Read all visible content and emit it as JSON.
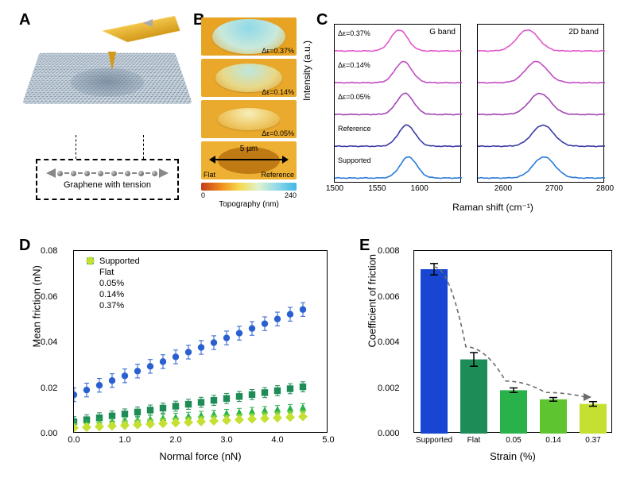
{
  "labels": {
    "A": "A",
    "B": "B",
    "C": "C",
    "D": "D",
    "E": "E"
  },
  "panelA": {
    "caption": "Graphene with tension"
  },
  "panelB": {
    "images": [
      {
        "strain": "Δε=0.37%",
        "bg": "#e8a323",
        "bubble_w": 92,
        "bubble_h": 44,
        "bubble_gradient": [
          "#8fd9e8",
          "#c9e9dc",
          "#e2b243"
        ]
      },
      {
        "strain": "Δε=0.14%",
        "bg": "#e9a82a",
        "bubble_w": 84,
        "bubble_h": 36,
        "bubble_gradient": [
          "#bde7e0",
          "#e8d98a",
          "#e2a734"
        ]
      },
      {
        "strain": "Δε=0.05%",
        "bg": "#eaaa2e",
        "bubble_w": 78,
        "bubble_h": 28,
        "bubble_gradient": [
          "#f6efb9",
          "#efc967",
          "#e3a833"
        ]
      },
      {
        "label_left": "Flat",
        "label_right": "Reference",
        "bg": "#edb032",
        "hole": true,
        "hole_color": "#c07a14",
        "scale_label": "5 µm"
      }
    ],
    "colorbar": {
      "gradient": [
        "#c33b1c",
        "#ef8a1b",
        "#f6d94c",
        "#dff2d0",
        "#8fd9e8",
        "#3fb7e4"
      ],
      "min": "0",
      "max": "240",
      "title": "Topography (nm)"
    }
  },
  "panelC": {
    "ylab": "Intensity (a.u.)",
    "xlab": "Raman shift (cm⁻¹)",
    "G": {
      "title": "G band",
      "xlim": [
        1500,
        1650
      ],
      "ticks": [
        1500,
        1550,
        1600
      ],
      "peak_domain": [
        1500,
        1650
      ]
    },
    "D2": {
      "title": "2D band",
      "xlim": [
        2550,
        2800
      ],
      "ticks": [
        2600,
        2700,
        2800
      ],
      "peak_domain": [
        2550,
        2800
      ]
    },
    "traces": [
      {
        "label": "Δε=0.37%",
        "color": "#e356c9",
        "G_peak": 1576,
        "D2_peak": 2648
      },
      {
        "label": "Δε=0.14%",
        "color": "#c24cc4",
        "G_peak": 1581,
        "D2_peak": 2665
      },
      {
        "label": "Δε=0.05%",
        "color": "#a347b5",
        "G_peak": 1583,
        "D2_peak": 2672
      },
      {
        "label": "Reference",
        "color": "#3a3aa8",
        "G_peak": 1585,
        "D2_peak": 2678
      },
      {
        "label": "Supported",
        "color": "#2a7bd6",
        "G_peak": 1587,
        "D2_peak": 2680
      }
    ],
    "peak_width_G": 14,
    "peak_width_2D": 30
  },
  "panelD": {
    "xlab": "Normal force (nN)",
    "ylab": "Mean friction (nN)",
    "xlim": [
      0,
      5.0
    ],
    "xticks": [
      0.0,
      1.0,
      2.0,
      3.0,
      4.0,
      5.0
    ],
    "ylim": [
      0,
      0.08
    ],
    "yticks": [
      0,
      0.02,
      0.04,
      0.06,
      0.08
    ],
    "series": [
      {
        "name": "Supported",
        "marker": "circle",
        "color": "#2a5fd0",
        "intercept": 0.017,
        "slope": 0.0083,
        "err": 0.003
      },
      {
        "name": "Flat",
        "marker": "square",
        "color": "#1e8c57",
        "intercept": 0.0052,
        "slope": 0.0034,
        "err": 0.0022
      },
      {
        "name": "0.05%",
        "marker": "triangle-up",
        "color": "#2ab24a",
        "intercept": 0.004,
        "slope": 0.0017,
        "err": 0.0015
      },
      {
        "name": "0.14%",
        "marker": "triangle-down",
        "color": "#74cf3a",
        "intercept": 0.003,
        "slope": 0.0013,
        "err": 0.0012
      },
      {
        "name": "0.37%",
        "marker": "diamond",
        "color": "#c6e032",
        "intercept": 0.0025,
        "slope": 0.0011,
        "err": 0.001
      }
    ],
    "x_points": [
      0.0,
      0.25,
      0.5,
      0.75,
      1.0,
      1.25,
      1.5,
      1.75,
      2.0,
      2.25,
      2.5,
      2.75,
      3.0,
      3.25,
      3.5,
      3.75,
      4.0,
      4.25,
      4.5
    ]
  },
  "panelE": {
    "xlab": "Strain (%)",
    "ylab": "Coefficient of friction",
    "ylim": [
      0,
      0.008
    ],
    "yticks": [
      0.0,
      0.002,
      0.004,
      0.006,
      0.008
    ],
    "bars": [
      {
        "label": "Supported",
        "value": 0.0072,
        "err": 0.00025,
        "color": "#1846d2"
      },
      {
        "label": "Flat",
        "value": 0.00325,
        "err": 0.0003,
        "color": "#1e8c57"
      },
      {
        "label": "0.05",
        "value": 0.0019,
        "err": 0.0001,
        "color": "#2ab24a"
      },
      {
        "label": "0.14",
        "value": 0.0015,
        "err": 8e-05,
        "color": "#5ec530"
      },
      {
        "label": "0.37",
        "value": 0.0013,
        "err": 0.0001,
        "color": "#c6e032"
      }
    ],
    "arrow_dash_color": "#6c6c6c"
  }
}
